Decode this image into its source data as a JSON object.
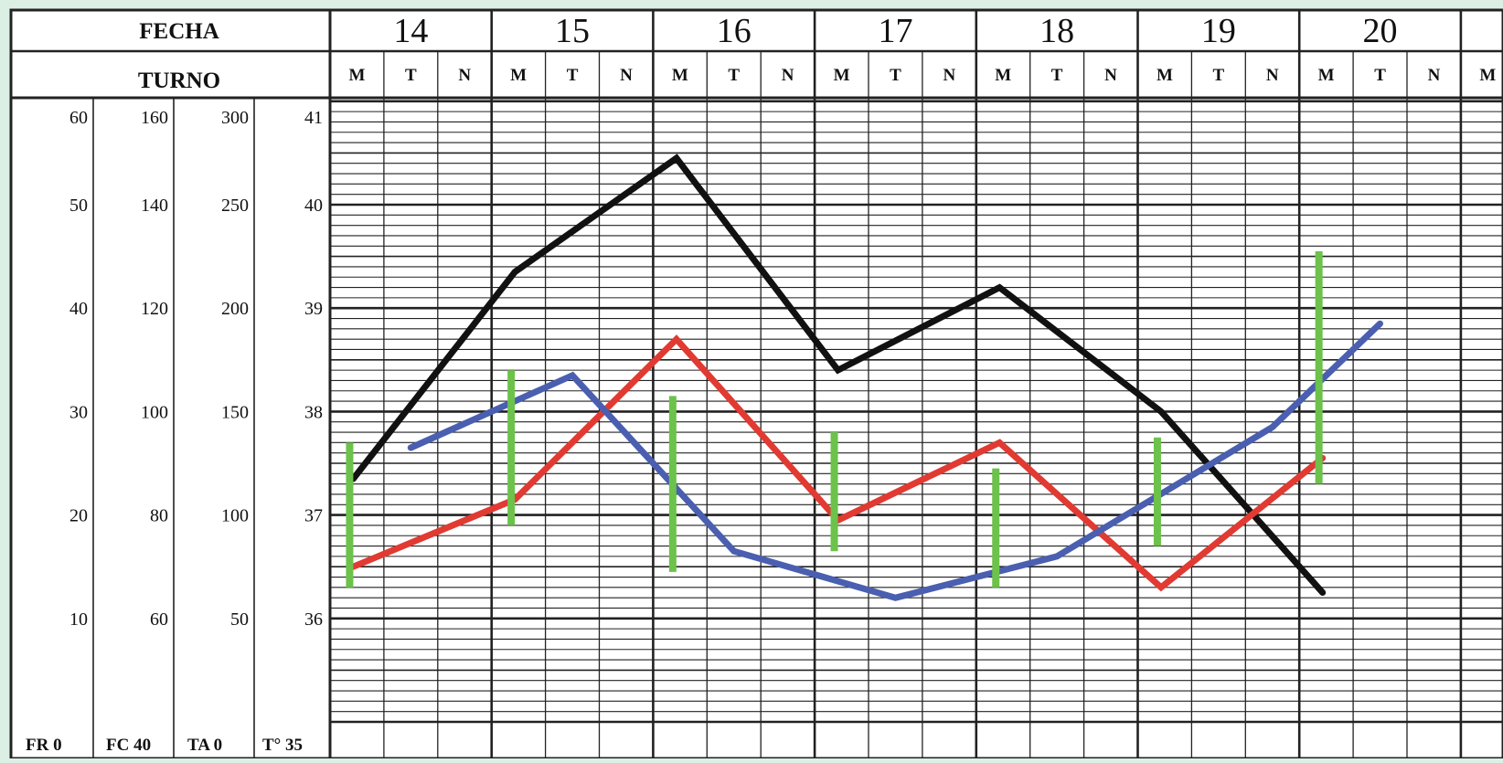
{
  "header": {
    "fecha_label": "FECHA",
    "turno_label": "TURNO"
  },
  "axes": {
    "fr": {
      "label": "FR",
      "ticks": [
        "60",
        "50",
        "40",
        "30",
        "20",
        "10",
        "0"
      ]
    },
    "fc": {
      "label": "FC",
      "ticks": [
        "160",
        "140",
        "120",
        "100",
        "80",
        "60",
        "40"
      ]
    },
    "ta": {
      "label": "TA",
      "ticks": [
        "300",
        "250",
        "200",
        "150",
        "100",
        "50",
        "0"
      ]
    },
    "temp": {
      "label": "T°",
      "ticks": [
        "41",
        "40",
        "39",
        "38",
        "37",
        "36",
        "35"
      ]
    }
  },
  "chart_data": {
    "type": "line",
    "days": [
      "14",
      "15",
      "16",
      "17",
      "18",
      "19",
      "20"
    ],
    "shifts": [
      "M",
      "T",
      "N"
    ],
    "x_unit": "turno (M/T/N) por fecha",
    "y_axes": {
      "FR": {
        "range": [
          0,
          60
        ]
      },
      "FC": {
        "range": [
          40,
          160
        ]
      },
      "TA": {
        "range": [
          0,
          300
        ]
      },
      "T°": {
        "range": [
          35,
          41
        ]
      }
    },
    "grid": true,
    "colors": {
      "black": "#111111",
      "red": "#e13a32",
      "blue": "#4a5fb0",
      "green": "#6cc24a",
      "grid": "#222222",
      "paper": "#ffffff",
      "frame_bg": "#dcefe4"
    },
    "series": [
      {
        "color": "black",
        "scale": "T°",
        "points": [
          [
            "14",
            "M",
            37.35
          ],
          [
            "15",
            "M",
            39.35
          ],
          [
            "16",
            "M",
            40.45
          ],
          [
            "17",
            "M",
            38.4
          ],
          [
            "18",
            "M",
            39.2
          ],
          [
            "19",
            "M",
            38.0
          ],
          [
            "20",
            "M",
            36.25
          ]
        ]
      },
      {
        "color": "red",
        "scale": "T°",
        "points": [
          [
            "14",
            "M",
            36.5
          ],
          [
            "15",
            "M",
            37.15
          ],
          [
            "16",
            "M",
            38.7
          ],
          [
            "17",
            "M",
            36.95
          ],
          [
            "18",
            "M",
            37.7
          ],
          [
            "19",
            "M",
            36.3
          ],
          [
            "20",
            "M",
            37.55
          ]
        ]
      },
      {
        "color": "blue",
        "scale": "T°",
        "points": [
          [
            "14",
            "T",
            37.65
          ],
          [
            "15",
            "T",
            38.35
          ],
          [
            "16",
            "T",
            36.65
          ],
          [
            "17",
            "T",
            36.2
          ],
          [
            "18",
            "T",
            36.6
          ],
          [
            "19",
            "N",
            37.85
          ],
          [
            "20",
            "T",
            38.85
          ]
        ]
      },
      {
        "color": "green",
        "type": "range_bar",
        "scale": "T°",
        "bars": [
          {
            "day": "14",
            "shift": "M",
            "low": 36.3,
            "high": 37.7
          },
          {
            "day": "15",
            "shift": "M",
            "low": 36.9,
            "high": 38.4
          },
          {
            "day": "16",
            "shift": "M",
            "low": 36.45,
            "high": 38.15
          },
          {
            "day": "17",
            "shift": "M",
            "low": 36.65,
            "high": 37.8
          },
          {
            "day": "18",
            "shift": "M",
            "low": 36.3,
            "high": 37.45
          },
          {
            "day": "19",
            "shift": "M",
            "low": 36.7,
            "high": 37.75
          },
          {
            "day": "20",
            "shift": "M",
            "low": 37.3,
            "high": 39.55
          }
        ]
      }
    ]
  }
}
